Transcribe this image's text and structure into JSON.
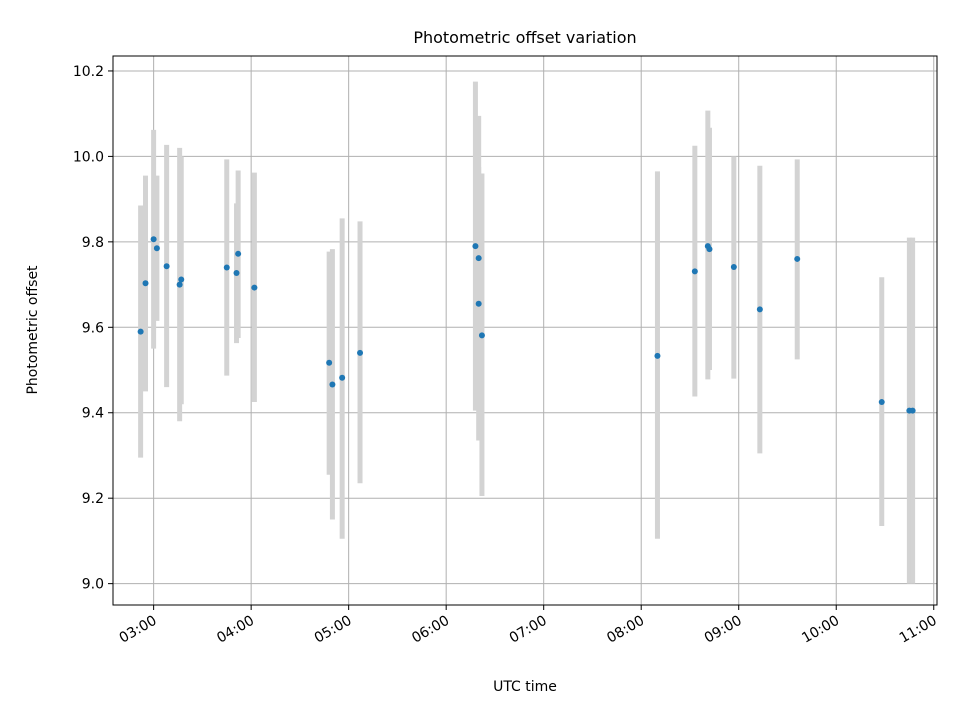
{
  "chart_data": {
    "type": "scatter",
    "title": "Photometric offset variation",
    "xlabel": "UTC time",
    "ylabel": "Photometric offset",
    "xlim": [
      "02:35",
      "11:02"
    ],
    "ylim": [
      8.95,
      10.235
    ],
    "x_ticks": [
      "03:00",
      "04:00",
      "05:00",
      "06:00",
      "07:00",
      "08:00",
      "09:00",
      "10:00",
      "11:00"
    ],
    "y_ticks": [
      9.0,
      9.2,
      9.4,
      9.6,
      9.8,
      10.0,
      10.2
    ],
    "y_tick_labels": [
      "9.0",
      "9.2",
      "9.4",
      "9.6",
      "9.8",
      "10.0",
      "10.2"
    ],
    "grid": true,
    "point_color": "#1f77b4",
    "errorbar_color": "#d3d3d3",
    "points": [
      {
        "t": "02:52",
        "y": 9.59,
        "low": 9.295,
        "high": 9.885
      },
      {
        "t": "02:55",
        "y": 9.703,
        "low": 9.45,
        "high": 9.955
      },
      {
        "t": "03:00",
        "y": 9.806,
        "low": 9.55,
        "high": 10.062
      },
      {
        "t": "03:02",
        "y": 9.785,
        "low": 9.615,
        "high": 9.955
      },
      {
        "t": "03:08",
        "y": 9.743,
        "low": 9.46,
        "high": 10.027
      },
      {
        "t": "03:16",
        "y": 9.7,
        "low": 9.38,
        "high": 10.02
      },
      {
        "t": "03:17",
        "y": 9.712,
        "low": 9.42,
        "high": 10.0
      },
      {
        "t": "03:45",
        "y": 9.74,
        "low": 9.487,
        "high": 9.993
      },
      {
        "t": "03:51",
        "y": 9.727,
        "low": 9.563,
        "high": 9.89
      },
      {
        "t": "03:52",
        "y": 9.772,
        "low": 9.575,
        "high": 9.967
      },
      {
        "t": "04:02",
        "y": 9.693,
        "low": 9.425,
        "high": 9.962
      },
      {
        "t": "04:48",
        "y": 9.517,
        "low": 9.255,
        "high": 9.777
      },
      {
        "t": "04:50",
        "y": 9.466,
        "low": 9.15,
        "high": 9.783
      },
      {
        "t": "04:56",
        "y": 9.482,
        "low": 9.105,
        "high": 9.855
      },
      {
        "t": "05:07",
        "y": 9.54,
        "low": 9.235,
        "high": 9.848
      },
      {
        "t": "06:18",
        "y": 9.79,
        "low": 9.405,
        "high": 10.175
      },
      {
        "t": "06:20",
        "y": 9.762,
        "low": 9.43,
        "high": 10.095
      },
      {
        "t": "06:20",
        "y": 9.655,
        "low": 9.335,
        "high": 9.975
      },
      {
        "t": "06:22",
        "y": 9.581,
        "low": 9.205,
        "high": 9.96
      },
      {
        "t": "08:10",
        "y": 9.533,
        "low": 9.105,
        "high": 9.965
      },
      {
        "t": "08:33",
        "y": 9.731,
        "low": 9.438,
        "high": 10.025
      },
      {
        "t": "08:41",
        "y": 9.79,
        "low": 9.478,
        "high": 10.107
      },
      {
        "t": "08:42",
        "y": 9.783,
        "low": 9.5,
        "high": 10.067
      },
      {
        "t": "08:57",
        "y": 9.741,
        "low": 9.48,
        "high": 10.0
      },
      {
        "t": "09:13",
        "y": 9.642,
        "low": 9.305,
        "high": 9.978
      },
      {
        "t": "09:36",
        "y": 9.76,
        "low": 9.525,
        "high": 9.993
      },
      {
        "t": "10:28",
        "y": 9.425,
        "low": 9.135,
        "high": 9.717
      },
      {
        "t": "10:45",
        "y": 9.405,
        "low": 9.0,
        "high": 9.81
      },
      {
        "t": "10:47",
        "y": 9.405,
        "low": 9.0,
        "high": 9.81
      }
    ]
  }
}
